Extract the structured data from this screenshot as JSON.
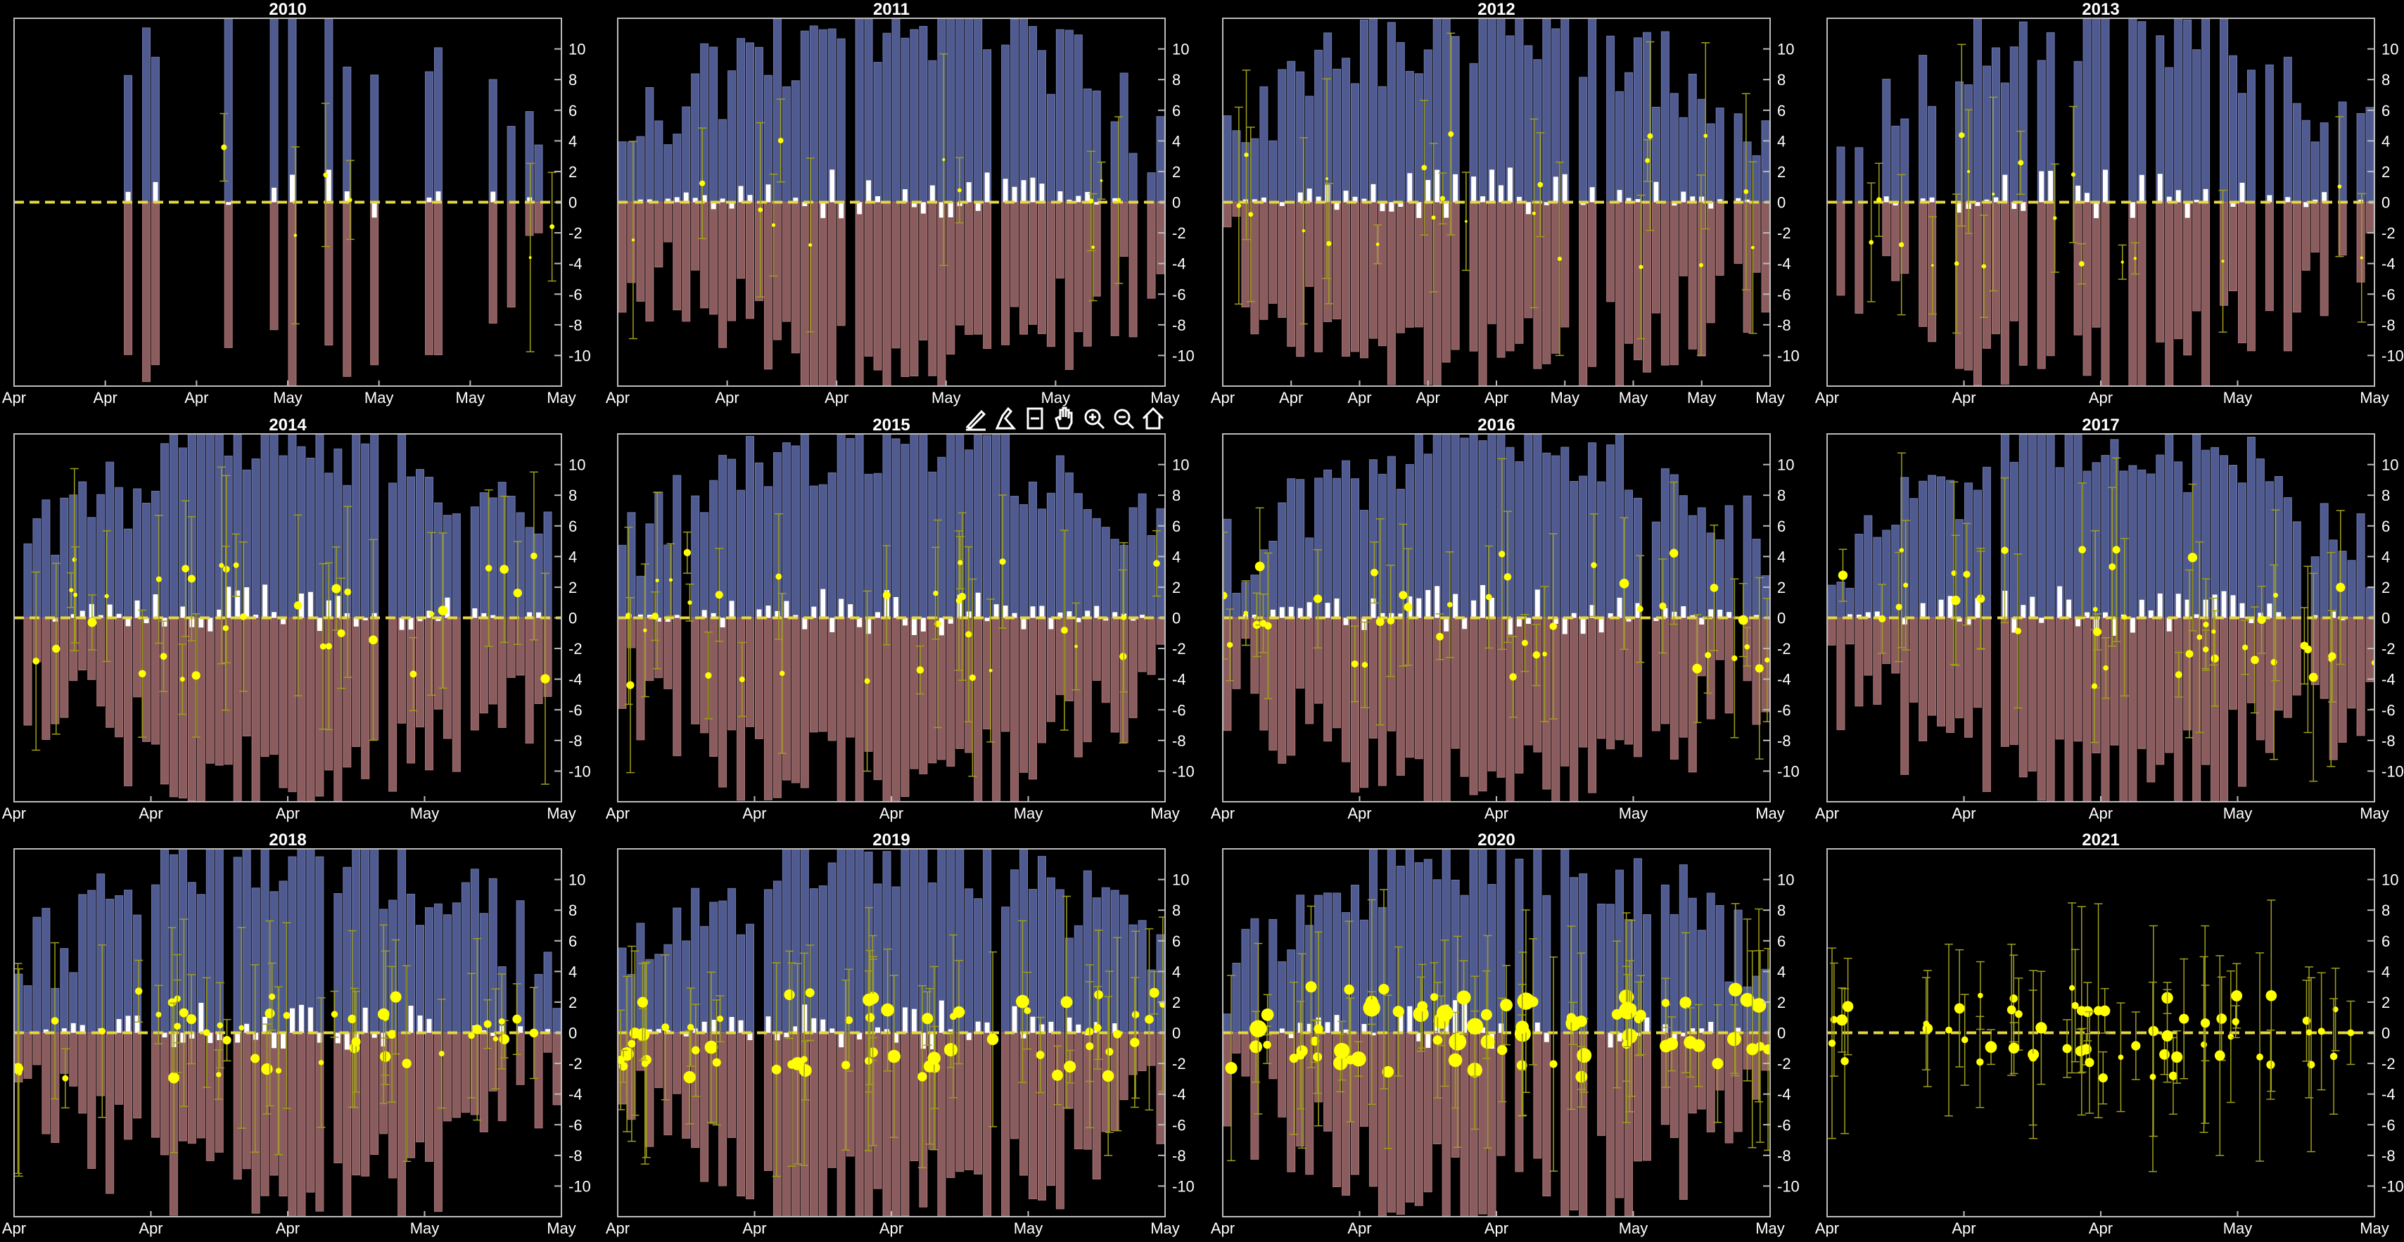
{
  "colors": {
    "background": "#000000",
    "upper_bar": "#4f5a90",
    "lower_bar": "#8b5c5e",
    "white_bar": "#ffffff",
    "dashed_zero": "#e6d640",
    "points": "#ffff00",
    "error_bars": "#9f9f1a",
    "axis": "#bbbbbb",
    "text": "#ffffff"
  },
  "toolbar": {
    "buttons": [
      {
        "name": "brush-data-icon"
      },
      {
        "name": "data-tips-icon"
      },
      {
        "name": "restore-view-icon"
      },
      {
        "name": "pan-hand-icon"
      },
      {
        "name": "zoom-in-icon"
      },
      {
        "name": "zoom-out-icon"
      },
      {
        "name": "home-icon"
      }
    ]
  },
  "chart_data": [
    {
      "type": "bar",
      "title": "2010",
      "ylim": [
        -12,
        12
      ],
      "yticks": [
        -10,
        -8,
        -6,
        -4,
        -2,
        0,
        2,
        4,
        6,
        8,
        10
      ],
      "xtick_labels": [
        "Apr",
        "Apr",
        "Apr",
        "May",
        "May",
        "May",
        "May"
      ],
      "ref_line": 0,
      "density": 0.17,
      "points": 6,
      "point_size": 3
    },
    {
      "type": "bar",
      "title": "2011",
      "ylim": [
        -12,
        12
      ],
      "yticks": [
        -10,
        -8,
        -6,
        -4,
        -2,
        0,
        2,
        4,
        6,
        8,
        10
      ],
      "xtick_labels": [
        "Apr",
        "Apr",
        "Apr",
        "May",
        "May",
        "May"
      ],
      "ref_line": 0,
      "density": 0.9,
      "points": 12,
      "point_size": 3
    },
    {
      "type": "bar",
      "title": "2012",
      "ylim": [
        -12,
        12
      ],
      "yticks": [
        -10,
        -8,
        -6,
        -4,
        -2,
        0,
        2,
        4,
        6,
        8,
        10
      ],
      "xtick_labels": [
        "Apr",
        "Apr",
        "Apr",
        "Apr",
        "Apr",
        "May",
        "May",
        "May",
        "May"
      ],
      "ref_line": 0,
      "density": 0.88,
      "points": 22,
      "point_size": 3
    },
    {
      "type": "bar",
      "title": "2013",
      "ylim": [
        -12,
        12
      ],
      "yticks": [
        -10,
        -8,
        -6,
        -4,
        -2,
        0,
        2,
        4,
        6,
        8,
        10
      ],
      "xtick_labels": [
        "Apr",
        "Apr",
        "Apr",
        "May",
        "May"
      ],
      "ref_line": 0,
      "density": 0.62,
      "points": 18,
      "point_size": 3
    },
    {
      "type": "bar",
      "title": "2014",
      "ylim": [
        -12,
        12
      ],
      "yticks": [
        -10,
        -8,
        -6,
        -4,
        -2,
        0,
        2,
        4,
        6,
        8,
        10
      ],
      "xtick_labels": [
        "Apr",
        "Apr",
        "Apr",
        "May",
        "May"
      ],
      "ref_line": 0,
      "density": 0.92,
      "points": 34,
      "point_size": 5
    },
    {
      "type": "bar",
      "title": "2015",
      "ylim": [
        -12,
        12
      ],
      "yticks": [
        -10,
        -8,
        -6,
        -4,
        -2,
        0,
        2,
        4,
        6,
        8,
        10
      ],
      "xtick_labels": [
        "Apr",
        "Apr",
        "Apr",
        "May",
        "May"
      ],
      "ref_line": 0,
      "density": 0.93,
      "points": 30,
      "point_size": 4
    },
    {
      "type": "bar",
      "title": "2016",
      "ylim": [
        -12,
        12
      ],
      "yticks": [
        -10,
        -8,
        -6,
        -4,
        -2,
        0,
        2,
        4,
        6,
        8,
        10
      ],
      "xtick_labels": [
        "Apr",
        "Apr",
        "Apr",
        "May",
        "May"
      ],
      "ref_line": 0,
      "density": 0.94,
      "points": 38,
      "point_size": 5
    },
    {
      "type": "bar",
      "title": "2017",
      "ylim": [
        -12,
        12
      ],
      "yticks": [
        -10,
        -8,
        -6,
        -4,
        -2,
        0,
        2,
        4,
        6,
        8,
        10
      ],
      "xtick_labels": [
        "Apr",
        "Apr",
        "Apr",
        "May",
        "May"
      ],
      "ref_line": 0,
      "density": 0.94,
      "points": 40,
      "point_size": 5
    },
    {
      "type": "bar",
      "title": "2018",
      "ylim": [
        -12,
        12
      ],
      "yticks": [
        -10,
        -8,
        -6,
        -4,
        -2,
        0,
        2,
        4,
        6,
        8,
        10
      ],
      "xtick_labels": [
        "Apr",
        "Apr",
        "Apr",
        "May",
        "May"
      ],
      "ref_line": 0,
      "density": 0.95,
      "points": 44,
      "point_size": 6
    },
    {
      "type": "bar",
      "title": "2019",
      "ylim": [
        -12,
        12
      ],
      "yticks": [
        -10,
        -8,
        -6,
        -4,
        -2,
        0,
        2,
        4,
        6,
        8,
        10
      ],
      "xtick_labels": [
        "Apr",
        "Apr",
        "Apr",
        "May",
        "May"
      ],
      "ref_line": 0,
      "density": 0.96,
      "points": 60,
      "point_size": 7
    },
    {
      "type": "bar",
      "title": "2020",
      "ylim": [
        -12,
        12
      ],
      "yticks": [
        -10,
        -8,
        -6,
        -4,
        -2,
        0,
        2,
        4,
        6,
        8,
        10
      ],
      "xtick_labels": [
        "Apr",
        "Apr",
        "Apr",
        "May",
        "May"
      ],
      "ref_line": 0,
      "density": 0.96,
      "points": 70,
      "point_size": 9
    },
    {
      "type": "scatter",
      "title": "2021",
      "ylim": [
        -12,
        12
      ],
      "yticks": [
        -10,
        -8,
        -6,
        -4,
        -2,
        0,
        2,
        4,
        6,
        8,
        10
      ],
      "xtick_labels": [
        "Apr",
        "Apr",
        "Apr",
        "May",
        "May"
      ],
      "ref_line": 0,
      "density": 0,
      "points": 60,
      "point_size": 6
    }
  ]
}
